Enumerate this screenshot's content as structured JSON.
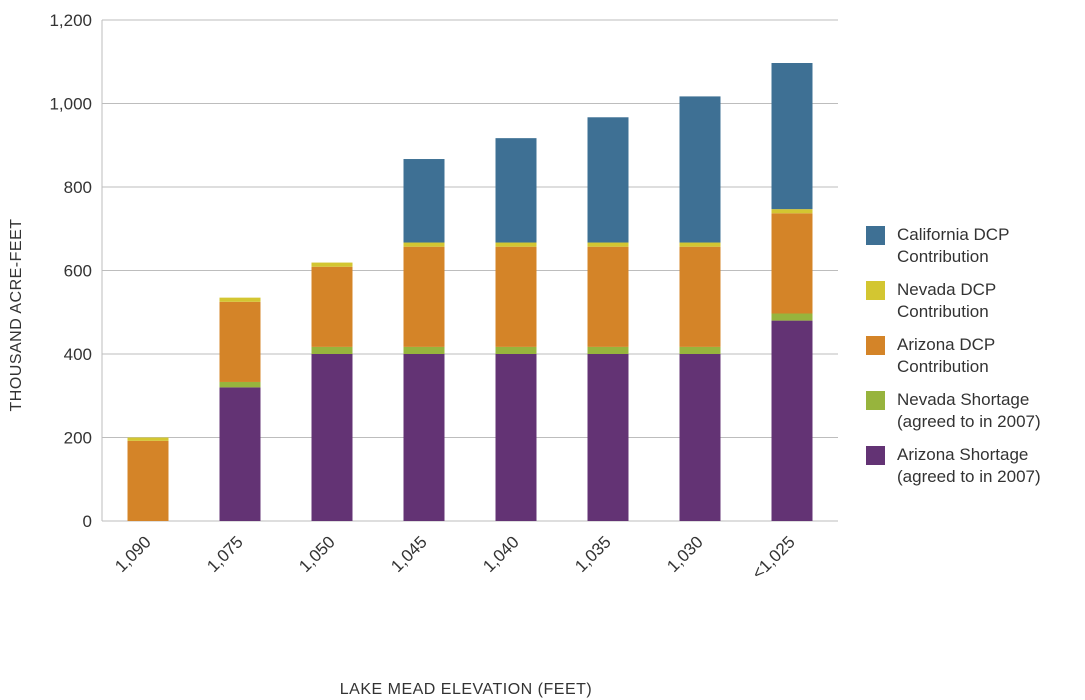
{
  "chart_data": {
    "type": "bar",
    "stacked": true,
    "xlabel": "LAKE MEAD ELEVATION (FEET)",
    "ylabel": "THOUSAND ACRE-FEET",
    "ylim": [
      0,
      1200
    ],
    "yticks": [
      "0",
      "200",
      "400",
      "600",
      "800",
      "1,000",
      "1,200"
    ],
    "ytick_values": [
      0,
      200,
      400,
      600,
      800,
      1000,
      1200
    ],
    "categories": [
      "1,090",
      "1,075",
      "1,050",
      "1,045",
      "1,040",
      "1,035",
      "1,030",
      "<1,025"
    ],
    "grid": true,
    "legend_position": "right",
    "series": [
      {
        "name": "Arizona Shortage (agreed to in 2007)",
        "color": "#633374",
        "values": [
          0,
          320,
          400,
          400,
          400,
          400,
          400,
          480
        ]
      },
      {
        "name": "Nevada Shortage (agreed to in 2007)",
        "color": "#97b43d",
        "values": [
          0,
          13,
          17,
          17,
          17,
          17,
          17,
          17
        ]
      },
      {
        "name": "Arizona DCP Contribution",
        "color": "#d48428",
        "values": [
          192,
          192,
          192,
          240,
          240,
          240,
          240,
          240
        ]
      },
      {
        "name": "Nevada DCP Contribution",
        "color": "#d3c631",
        "values": [
          8,
          10,
          10,
          10,
          10,
          10,
          10,
          10
        ]
      },
      {
        "name": "California DCP Contribution",
        "color": "#3e7094",
        "values": [
          0,
          0,
          0,
          200,
          250,
          300,
          350,
          350
        ]
      }
    ]
  },
  "legend": {
    "items": [
      {
        "name": "california",
        "line1": "California DCP",
        "line2": "Contribution",
        "color": "#3e7094"
      },
      {
        "name": "nevada-dcp",
        "line1": "Nevada DCP",
        "line2": "Contribution",
        "color": "#d3c631"
      },
      {
        "name": "arizona-dcp",
        "line1": "Arizona DCP",
        "line2": "Contribution",
        "color": "#d48428"
      },
      {
        "name": "nevada-shortage",
        "line1": "Nevada Shortage",
        "line2": "(agreed to in 2007)",
        "color": "#97b43d"
      },
      {
        "name": "arizona-shortage",
        "line1": "Arizona Shortage",
        "line2": "(agreed to in 2007)",
        "color": "#633374"
      }
    ]
  }
}
